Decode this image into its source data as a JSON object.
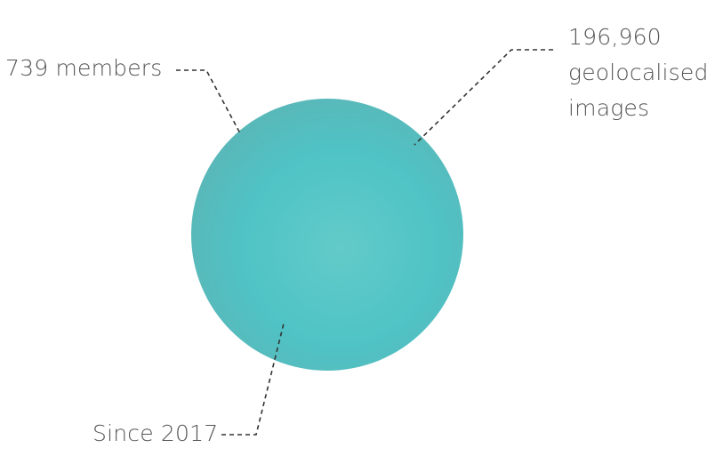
{
  "labels": {
    "members": "739 members",
    "images_count": "196,960",
    "images_line2": "geolocalised",
    "images_line3": "images",
    "since": "Since 2017"
  },
  "colors": {
    "circle_light": "#62cbc9",
    "circle_mid": "#4dc2c6",
    "circle_dark": "#5bb6b6",
    "text": "#555555",
    "leader_line": "#333333"
  }
}
